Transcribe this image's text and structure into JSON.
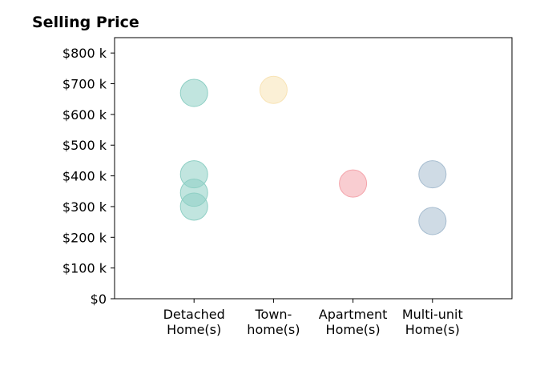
{
  "chart_data": {
    "type": "scatter",
    "title": "Selling Price",
    "xlabel": "",
    "ylabel": "",
    "categories": [
      [
        "Detached",
        "Home(s)"
      ],
      [
        "Town-",
        "home(s)"
      ],
      [
        "Apartment",
        "Home(s)"
      ],
      [
        "Multi-unit",
        "Home(s)"
      ]
    ],
    "ylim": [
      0,
      850000
    ],
    "xlim": [
      -1,
      4
    ],
    "y_ticks": [
      0,
      100000,
      200000,
      300000,
      400000,
      500000,
      600000,
      700000,
      800000
    ],
    "y_tick_labels": [
      "$0",
      "$100 k",
      "$200 k",
      "$300 k",
      "$400 k",
      "$500 k",
      "$600 k",
      "$700 k",
      "$800 k"
    ],
    "grid": false,
    "legend": "none",
    "series": [
      {
        "category_index": 0,
        "color": "#8ecfc4",
        "values": [
          670000,
          405000,
          345000,
          300000
        ]
      },
      {
        "category_index": 1,
        "color": "#f8e3b4",
        "values": [
          680000
        ]
      },
      {
        "category_index": 2,
        "color": "#f4a4ab",
        "values": [
          375000
        ]
      },
      {
        "category_index": 3,
        "color": "#a7bdd0",
        "values": [
          405000,
          253000
        ]
      }
    ]
  }
}
